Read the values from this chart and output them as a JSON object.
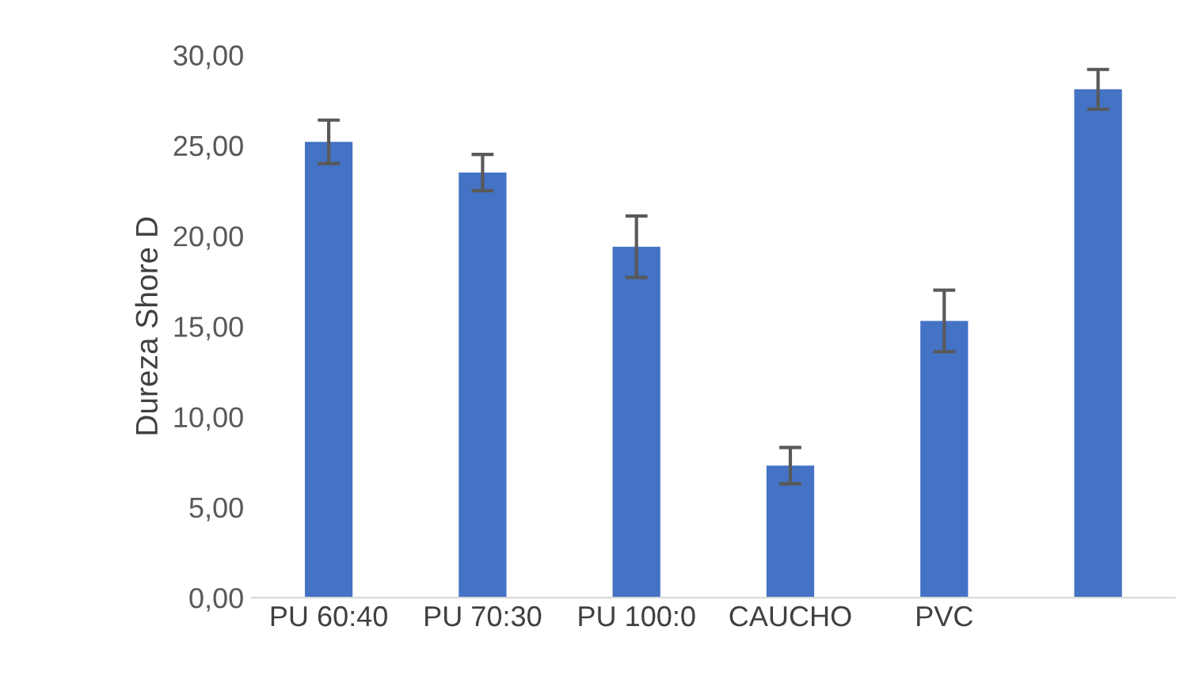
{
  "chart_data": {
    "type": "bar",
    "ylabel": "Dureza Shore D",
    "categories": [
      "PU 60:40",
      "PU 70:30",
      "PU 100:0",
      "CAUCHO",
      "PVC",
      null
    ],
    "values": [
      25.2,
      23.5,
      19.4,
      7.3,
      15.3,
      28.1
    ],
    "errors": [
      1.2,
      1.0,
      1.7,
      1.0,
      1.7,
      1.1
    ],
    "color": "#4472c4",
    "ylim": [
      0,
      30
    ],
    "yticks": [
      {
        "value": 0,
        "label": "0,00"
      },
      {
        "value": 5,
        "label": "5,00"
      },
      {
        "value": 10,
        "label": "10,00"
      },
      {
        "value": 15,
        "label": "15,00"
      },
      {
        "value": 20,
        "label": "20,00"
      },
      {
        "value": 25,
        "label": "25,00"
      },
      {
        "value": 30,
        "label": "30,00"
      }
    ],
    "grid": false
  }
}
